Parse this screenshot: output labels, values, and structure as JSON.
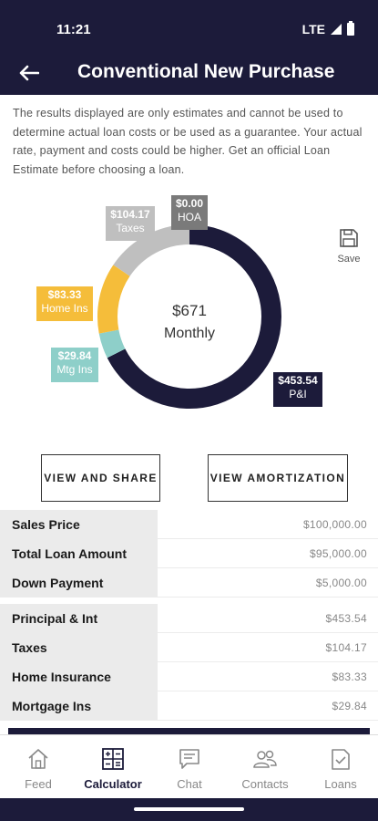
{
  "status_bar": {
    "time": "11:21",
    "network": "LTE"
  },
  "header": {
    "title": "Conventional New Purchase"
  },
  "disclaimer": "The results displayed are only estimates and cannot be used to determine actual loan costs or be used as a guarantee. Your actual rate, payment and costs could be higher. Get an official Loan Estimate before choosing a loan.",
  "colors": {
    "primary": "#1c1b3a",
    "hoa": "#7a7a7a",
    "taxes": "#bfbfbf",
    "home_ins": "#f5bd3a",
    "mtg_ins": "#8ecfc9"
  },
  "chart": {
    "center_amount": "$671",
    "center_label": "Monthly",
    "segments": [
      {
        "key": "pi",
        "amount": "$453.54",
        "label": "P&I",
        "value": 453.54
      },
      {
        "key": "mtgins",
        "amount": "$29.84",
        "label": "Mtg Ins",
        "value": 29.84
      },
      {
        "key": "homeins",
        "amount": "$83.33",
        "label": "Home Ins",
        "value": 83.33
      },
      {
        "key": "taxes",
        "amount": "$104.17",
        "label": "Taxes",
        "value": 104.17
      },
      {
        "key": "hoa",
        "amount": "$0.00",
        "label": "HOA",
        "value": 0
      }
    ]
  },
  "save_label": "Save",
  "buttons": {
    "view_share": "VIEW AND SHARE",
    "view_amortization": "VIEW AMORTIZATION"
  },
  "loan_table": [
    {
      "label": "Sales Price",
      "value": "$100,000.00"
    },
    {
      "label": "Total Loan Amount",
      "value": "$95,000.00"
    },
    {
      "label": "Down Payment",
      "value": "$5,000.00"
    }
  ],
  "payment_table": [
    {
      "label": "Principal & Int",
      "value": "$453.54"
    },
    {
      "label": "Taxes",
      "value": "$104.17"
    },
    {
      "label": "Home Insurance",
      "value": "$83.33"
    },
    {
      "label": "Mortgage Ins",
      "value": "$29.84"
    }
  ],
  "nav": {
    "feed": "Feed",
    "calculator": "Calculator",
    "chat": "Chat",
    "contacts": "Contacts",
    "loans": "Loans",
    "active": "calculator"
  }
}
